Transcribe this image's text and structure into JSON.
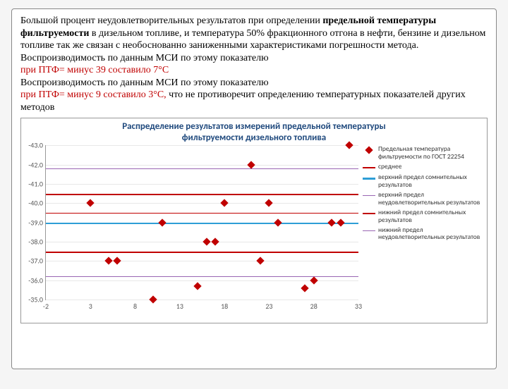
{
  "paragraph": {
    "run1": "Большой процент неудовлетворительных результатов при определении ",
    "bold1": "предельной температуры фильтруемости",
    "run2": " в дизельном топливе, и температура 50% фракционного отгона в нефти, бензине и дизельном топливе так же связан с необоснованно заниженными характеристиками погрешности метода.",
    "run3": "Воспроизводимость  по данным МСИ по этому показателю",
    "red1": "при ПТФ= минус 39 составило 7°С",
    "run4": "Воспроизводимость по данным МСИ по этому показателю",
    "red2_a": "при ПТФ= минус 9 составило 3°С,",
    "run5": " что не противоречит определению температурных показателей других методов"
  },
  "chart": {
    "title_line1": "Распределение результатов измерений предельной температуры",
    "title_line2": "фильтруемости дизельного топлива",
    "y_axis": {
      "min": -35,
      "max": -43,
      "ticks": [
        -43,
        -42,
        -41,
        -40,
        -39,
        -38,
        -37,
        -36,
        -35
      ]
    },
    "x_axis": {
      "min": -2,
      "max": 33,
      "ticks": [
        -2,
        3,
        8,
        13,
        18,
        23,
        28,
        33
      ]
    },
    "grid_color": "#e8e8e8",
    "ref_lines": [
      {
        "y": -39.5,
        "color": "#c00000",
        "width": 1.5
      },
      {
        "y": -39.0,
        "color": "#2e9ed6",
        "width": 2.5
      },
      {
        "y": -36.2,
        "color": "#9966b3",
        "width": 1.2
      },
      {
        "y": -37.5,
        "color": "#c00000",
        "width": 2.2
      },
      {
        "y": -40.5,
        "color": "#c00000",
        "width": 2.2
      },
      {
        "y": -41.8,
        "color": "#9966b3",
        "width": 1.2
      }
    ],
    "points": [
      {
        "x": 3,
        "y": -40
      },
      {
        "x": 5,
        "y": -37
      },
      {
        "x": 6,
        "y": -37
      },
      {
        "x": 10,
        "y": -35
      },
      {
        "x": 11,
        "y": -39
      },
      {
        "x": 15,
        "y": -35.7
      },
      {
        "x": 16,
        "y": -38
      },
      {
        "x": 17,
        "y": -38
      },
      {
        "x": 18,
        "y": -40
      },
      {
        "x": 21,
        "y": -42
      },
      {
        "x": 22,
        "y": -37
      },
      {
        "x": 23,
        "y": -40
      },
      {
        "x": 24,
        "y": -39
      },
      {
        "x": 27,
        "y": -35.6
      },
      {
        "x": 28,
        "y": -36
      },
      {
        "x": 30,
        "y": -39
      },
      {
        "x": 31,
        "y": -39
      },
      {
        "x": 32,
        "y": -43
      }
    ],
    "legend": [
      {
        "kind": "marker",
        "color": "#c00000",
        "label": "Предельная температура фильтруемости по ГОСТ 22254"
      },
      {
        "kind": "line",
        "color": "#c00000",
        "width": 1.5,
        "label": "среднее"
      },
      {
        "kind": "line",
        "color": "#2e9ed6",
        "width": 2.5,
        "label": "верхний предел сомнительных результатов"
      },
      {
        "kind": "line",
        "color": "#9966b3",
        "width": 1.2,
        "label": "верхний предел неудовлетворительных результатов"
      },
      {
        "kind": "line",
        "color": "#c00000",
        "width": 2.2,
        "label": "нижний предел сомнительных результатов"
      },
      {
        "kind": "line",
        "color": "#9966b3",
        "width": 1.2,
        "label": "нижний предел неудовлетворительных результатов"
      }
    ]
  }
}
